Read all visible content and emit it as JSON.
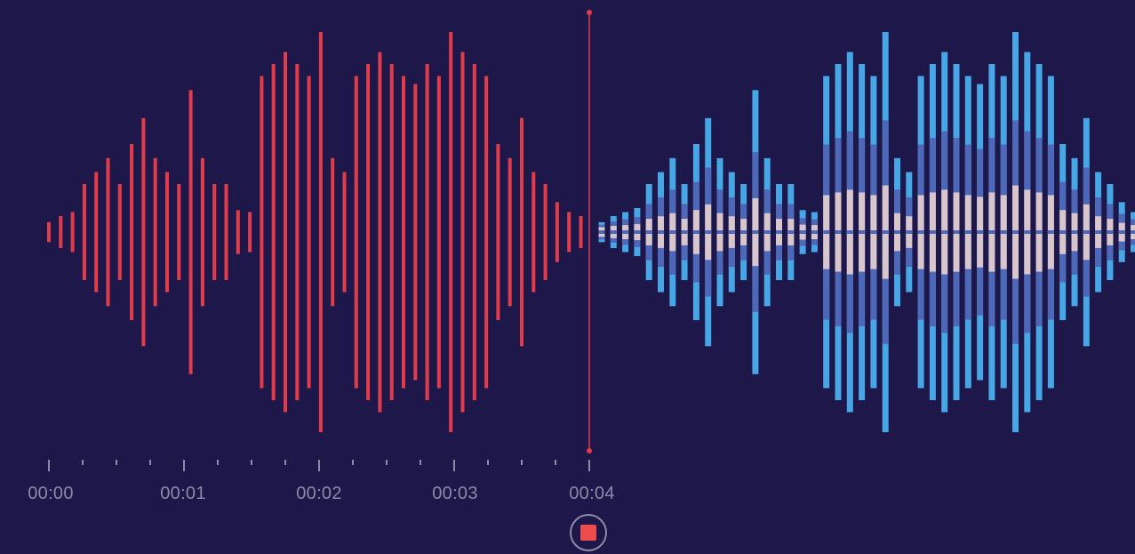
{
  "recorder": {
    "time_labels": [
      "00:00",
      "00:01",
      "00:02",
      "00:03",
      "00:04"
    ],
    "playhead_time_seconds": 4,
    "state": "recording",
    "stop_button_label": "Stop recording"
  },
  "colors": {
    "background": "#1e174a",
    "recorded_wave": "#e23b4a",
    "playhead": "#e23b4a",
    "live_wave_outer": "#46a6e6",
    "live_wave_mid": "#4d68b8",
    "live_wave_inner": "#d9c6cc",
    "ticks": "#8c8aa7",
    "stop_icon": "#ef4d4d"
  },
  "waveform": {
    "recorded_amplitudes": [
      0.05,
      0.08,
      0.1,
      0.24,
      0.3,
      0.37,
      0.24,
      0.44,
      0.57,
      0.37,
      0.3,
      0.24,
      0.71,
      0.37,
      0.24,
      0.24,
      0.11,
      0.1,
      0.78,
      0.84,
      0.9,
      0.84,
      0.78,
      1.0,
      0.37,
      0.3,
      0.78,
      0.84,
      0.9,
      0.84,
      0.78,
      0.74,
      0.84,
      0.78,
      1.0,
      0.9,
      0.84,
      0.78,
      0.44,
      0.37,
      0.57,
      0.3,
      0.24,
      0.15,
      0.1,
      0.08
    ],
    "live_amplitudes": [
      0.05,
      0.08,
      0.1,
      0.12,
      0.24,
      0.3,
      0.37,
      0.24,
      0.44,
      0.57,
      0.37,
      0.3,
      0.24,
      0.71,
      0.37,
      0.24,
      0.24,
      0.11,
      0.1,
      0.78,
      0.84,
      0.9,
      0.84,
      0.78,
      1.0,
      0.37,
      0.3,
      0.78,
      0.84,
      0.9,
      0.84,
      0.78,
      0.74,
      0.84,
      0.78,
      1.0,
      0.9,
      0.84,
      0.78,
      0.44,
      0.37,
      0.57,
      0.3,
      0.24,
      0.15,
      0.1,
      0.08,
      0.08
    ]
  }
}
